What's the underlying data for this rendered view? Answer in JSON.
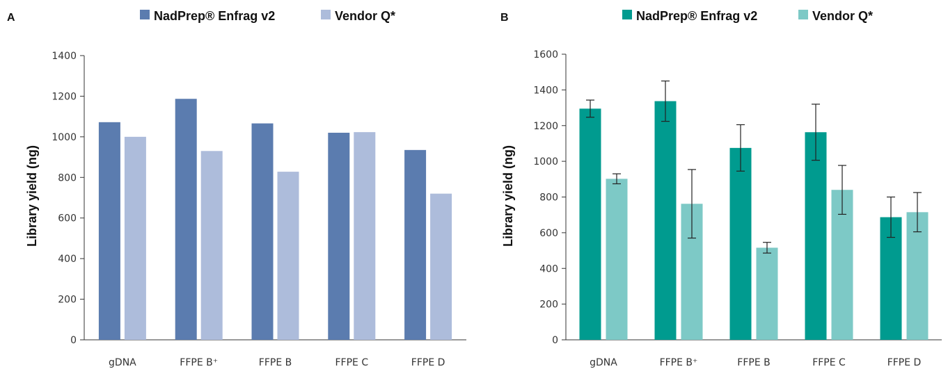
{
  "chart_data": [
    {
      "type": "bar",
      "panel_label": "A",
      "categories": [
        "gDNA",
        "FFPE B⁺",
        "FFPE B",
        "FFPE C",
        "FFPE D"
      ],
      "series": [
        {
          "name": "NadPrep® Enfrag v2",
          "color": "#5b7caf",
          "values": [
            1072,
            1187,
            1066,
            1020,
            935
          ]
        },
        {
          "name": "Vendor Q*",
          "color": "#adbcdb",
          "values": [
            1000,
            930,
            828,
            1023,
            720
          ]
        }
      ],
      "ylabel": "Library yield (ng)",
      "ylim": [
        0,
        1400
      ],
      "yticks": [
        0,
        200,
        400,
        600,
        800,
        1000,
        1200,
        1400
      ],
      "ytick_labels": [
        "0",
        "200",
        "400",
        "600",
        "800",
        "1000",
        "1200",
        "1400"
      ],
      "legend_position": "top",
      "grid": false
    },
    {
      "type": "bar",
      "panel_label": "B",
      "categories": [
        "gDNA",
        "FFPE B⁺",
        "FFPE B",
        "FFPE C",
        "FFPE D"
      ],
      "series": [
        {
          "name": "NadPrep® Enfrag v2",
          "color": "#009b8f",
          "values": [
            1295,
            1337,
            1075,
            1163,
            687
          ],
          "error": [
            48,
            113,
            130,
            157,
            113
          ]
        },
        {
          "name": "Vendor Q*",
          "color": "#7dc9c6",
          "values": [
            902,
            762,
            516,
            840,
            715
          ],
          "error": [
            28,
            192,
            30,
            137,
            110
          ]
        }
      ],
      "ylabel": "Library yield (ng)",
      "ylim": [
        0,
        1600
      ],
      "yticks": [
        0,
        200,
        400,
        600,
        800,
        1000,
        1200,
        1400,
        1600
      ],
      "ytick_labels": [
        "0",
        "200",
        "400",
        "600",
        "800",
        "1000",
        "1200",
        "1400",
        "1600"
      ],
      "legend_position": "top",
      "grid": false
    }
  ]
}
